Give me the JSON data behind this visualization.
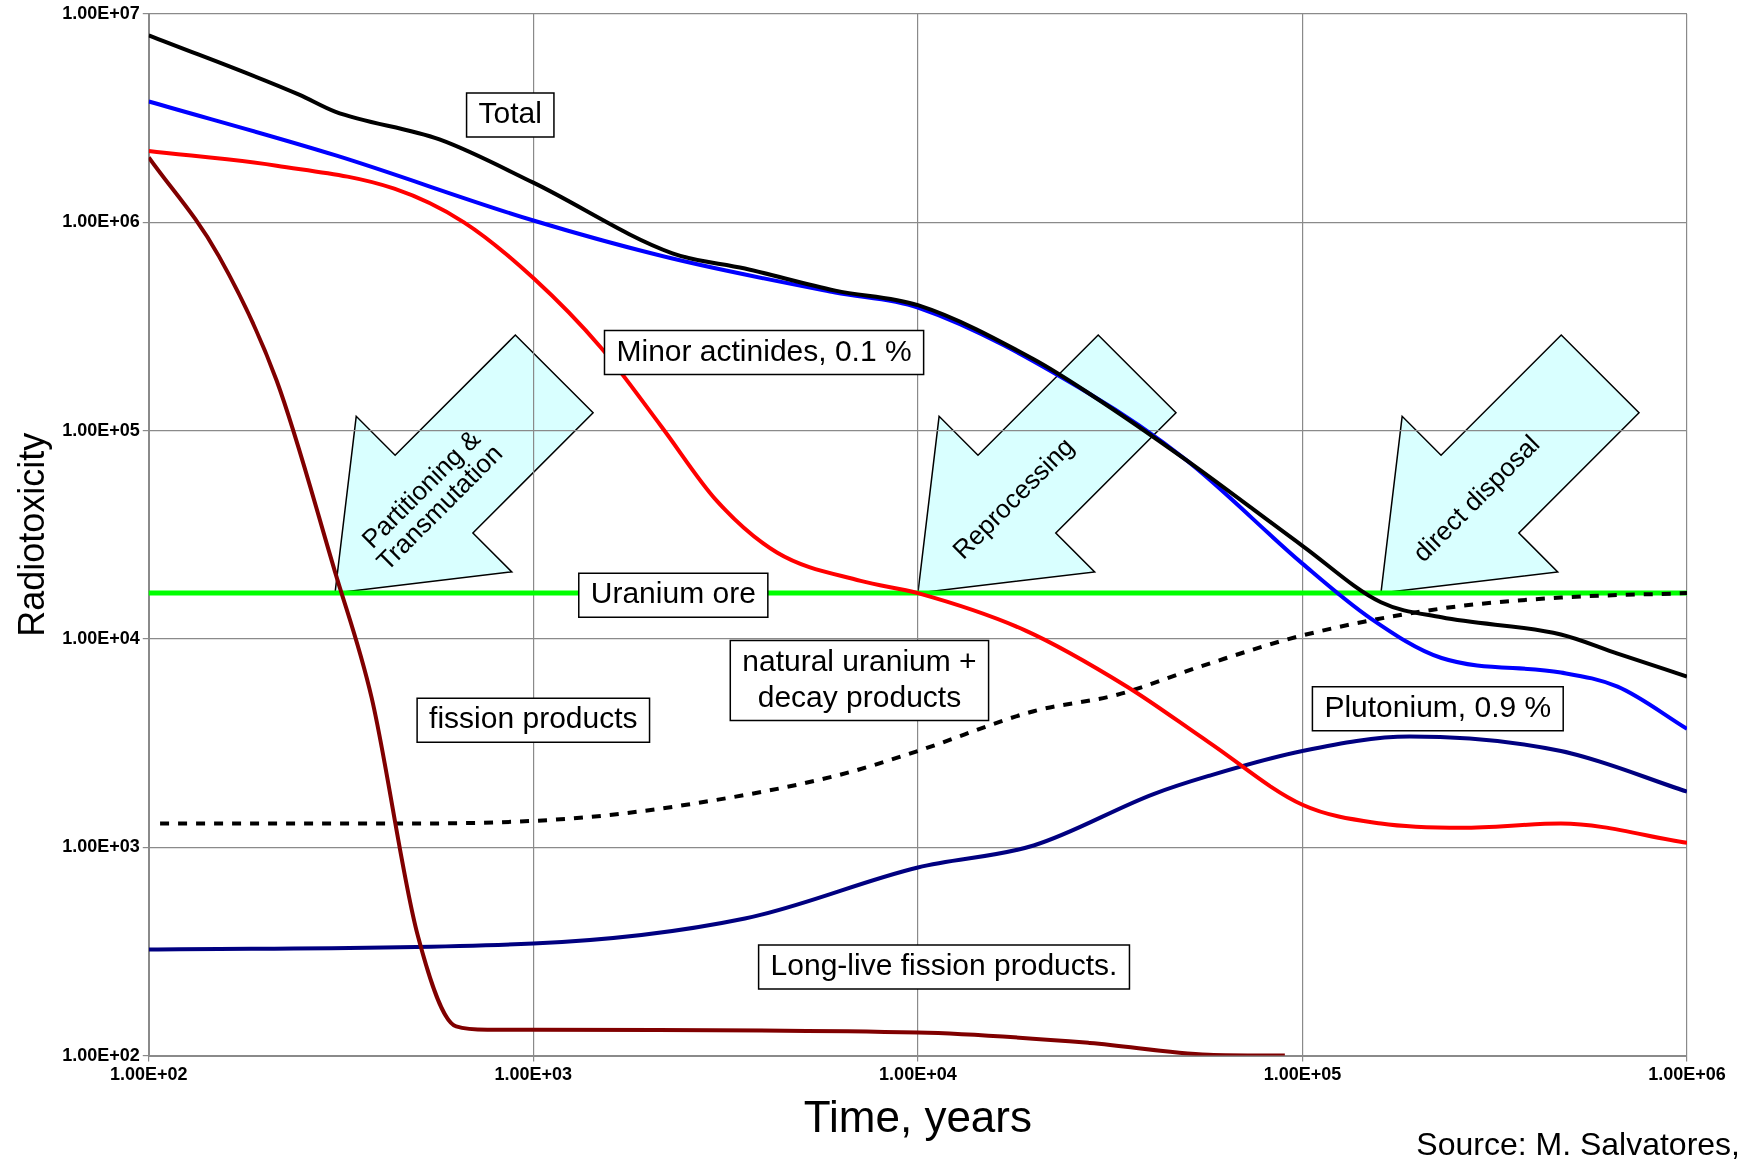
{
  "chart_data": {
    "type": "line",
    "xlabel": "Time, years",
    "ylabel": "Radiotoxicity",
    "log": "xy",
    "grid": true,
    "legend": false,
    "marker": "none",
    "xlim": [
      100,
      1000000
    ],
    "ylim": [
      100,
      10000000
    ],
    "xticks": [
      {
        "value": 100,
        "label": "1.00E+02"
      },
      {
        "value": 1000,
        "label": "1.00E+03"
      },
      {
        "value": 10000,
        "label": "1.00E+04"
      },
      {
        "value": 100000,
        "label": "1.00E+05"
      },
      {
        "value": 1000000,
        "label": "1.00E+06"
      }
    ],
    "yticks": [
      {
        "value": 100,
        "label": "1.00E+02"
      },
      {
        "value": 1000,
        "label": "1.00E+03"
      },
      {
        "value": 10000,
        "label": "1.00E+04"
      },
      {
        "value": 100000,
        "label": "1.00E+05"
      },
      {
        "value": 1000000,
        "label": "1.00E+06"
      },
      {
        "value": 10000000,
        "label": "1.00E+07"
      }
    ],
    "series": [
      {
        "name": "Total",
        "color": "#000000",
        "x": [
          100,
          246,
          305,
          570,
          1000,
          2300,
          3550,
          6100,
          10000,
          20000,
          28000,
          50000,
          100000,
          160000,
          230000,
          470000,
          660000,
          1000000
        ],
        "values": [
          7900000,
          4100000,
          3400000,
          2500000,
          1550000,
          710000,
          600000,
          470000,
          400000,
          220000,
          150000,
          72000,
          28000,
          15000,
          12700,
          10500,
          8500,
          6600
        ]
      },
      {
        "name": "Plutonium, 0.9 %",
        "color": "#0000ff",
        "x": [
          100,
          305,
          1000,
          2300,
          6100,
          10000,
          28000,
          50000,
          100000,
          150000,
          230000,
          470000,
          660000,
          1000000
        ],
        "values": [
          3800000,
          2100000,
          1020000,
          670000,
          460000,
          390000,
          150000,
          72000,
          23000,
          12600,
          8100,
          6900,
          5900,
          3700
        ]
      },
      {
        "name": "Minor actinides, 0.1 %",
        "color": "#ff0000",
        "x": [
          100,
          215,
          435,
          660,
          1000,
          1500,
          2150,
          3000,
          4300,
          7100,
          10000,
          19000,
          35000,
          57000,
          100000,
          160000,
          260000,
          470000,
          1000000
        ],
        "values": [
          2200000,
          1870000,
          1450000,
          1000000,
          540000,
          250000,
          105000,
          46000,
          26000,
          19000,
          16600,
          11000,
          5900,
          3200,
          1600,
          1300,
          1240,
          1300,
          1050
        ]
      },
      {
        "name": "fission products",
        "color": "#800000",
        "x": [
          100,
          152,
          215,
          305,
          380,
          500,
          630,
          760,
          1000,
          10000,
          28000,
          57000,
          90000
        ],
        "values": [
          2050000,
          690000,
          174000,
          21000,
          5200,
          380,
          138,
          133,
          133,
          129,
          115,
          101,
          100
        ]
      },
      {
        "name": "Long-live fission products.",
        "color": "#000080",
        "x": [
          100,
          1000,
          3550,
          10000,
          20000,
          41000,
          57000,
          100000,
          190000,
          470000,
          1000000
        ],
        "values": [
          323,
          345,
          455,
          800,
          1020,
          1800,
          2200,
          2900,
          3400,
          2900,
          1850
        ]
      },
      {
        "name": "natural uranium + decay products",
        "color": "#000000",
        "line_style": "dashed",
        "x": [
          107,
          435,
          1230,
          2500,
          6100,
          10000,
          20000,
          33000,
          57000,
          100000,
          230000,
          470000,
          1000000
        ],
        "values": [
          1300,
          1300,
          1370,
          1600,
          2200,
          2900,
          4500,
          5400,
          7600,
          10400,
          14000,
          15800,
          16600
        ]
      }
    ],
    "ref_lines": [
      {
        "axis": "y",
        "value": 16600,
        "label": "Uranium ore",
        "color": "#00ff00"
      }
    ],
    "annotations": [
      {
        "text": "Partitioning & Transmutation",
        "x": 305,
        "y": 16600
      },
      {
        "text": "Reprocessing",
        "x": 10000,
        "y": 16600
      },
      {
        "text": "direct disposal",
        "x": 160000,
        "y": 16600
      },
      "Source: M. Salvatores,"
    ]
  }
}
